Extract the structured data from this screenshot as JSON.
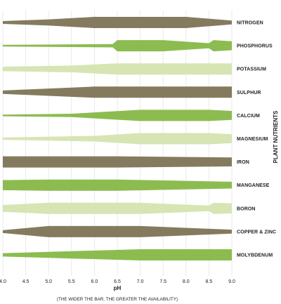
{
  "chart_data": {
    "type": "area",
    "xlabel": "pH",
    "xnote": "(THE WIDER THE BAR, THE GREATER THE AVAILABILITY)",
    "ylabel": "PLANT NUTRIENTS",
    "xlim": [
      4.0,
      9.0
    ],
    "xticks": [
      "4.0",
      "4.5",
      "5.0",
      "5.5",
      "6.0",
      "6.5",
      "7.0",
      "7.5",
      "8.0",
      "8.5",
      "9.0"
    ],
    "colors": {
      "dark": "#847b5f",
      "green": "#8cbc50",
      "light": "#d6e5b3"
    },
    "value_scale": "relative bar width, 0 = unavailable, 1 = widest bar",
    "series": [
      {
        "name": "NITROGEN",
        "color": "dark",
        "points": [
          [
            4.0,
            0.25
          ],
          [
            5.0,
            0.55
          ],
          [
            6.0,
            1.0
          ],
          [
            8.0,
            1.0
          ],
          [
            9.0,
            0.35
          ]
        ]
      },
      {
        "name": "PHOSPHORUS",
        "color": "green",
        "points": [
          [
            4.0,
            0.15
          ],
          [
            6.4,
            0.3
          ],
          [
            6.5,
            1.0
          ],
          [
            7.5,
            1.0
          ],
          [
            8.5,
            0.45
          ],
          [
            8.6,
            1.0
          ],
          [
            9.0,
            0.8
          ]
        ]
      },
      {
        "name": "POTASSIUM",
        "color": "light",
        "points": [
          [
            4.0,
            0.4
          ],
          [
            5.5,
            0.6
          ],
          [
            6.5,
            1.0
          ],
          [
            9.0,
            1.0
          ]
        ]
      },
      {
        "name": "SULPHUR",
        "color": "dark",
        "points": [
          [
            4.0,
            0.3
          ],
          [
            6.0,
            1.0
          ],
          [
            9.0,
            1.0
          ]
        ]
      },
      {
        "name": "CALCIUM",
        "color": "green",
        "points": [
          [
            4.0,
            0.15
          ],
          [
            5.5,
            0.3
          ],
          [
            7.0,
            1.0
          ],
          [
            8.5,
            1.0
          ],
          [
            9.0,
            0.8
          ]
        ]
      },
      {
        "name": "MAGNESIUM",
        "color": "light",
        "points": [
          [
            4.0,
            0.2
          ],
          [
            6.0,
            0.5
          ],
          [
            7.0,
            1.0
          ],
          [
            8.5,
            1.0
          ],
          [
            9.0,
            0.8
          ]
        ]
      },
      {
        "name": "IRON",
        "color": "dark",
        "points": [
          [
            4.0,
            1.0
          ],
          [
            6.5,
            1.0
          ],
          [
            9.0,
            0.8
          ]
        ]
      },
      {
        "name": "MANGANESE",
        "color": "green",
        "points": [
          [
            4.0,
            0.9
          ],
          [
            5.0,
            1.0
          ],
          [
            6.5,
            1.0
          ],
          [
            9.0,
            0.6
          ]
        ]
      },
      {
        "name": "BORON",
        "color": "light",
        "points": [
          [
            4.0,
            0.6
          ],
          [
            5.0,
            1.0
          ],
          [
            7.0,
            1.0
          ],
          [
            8.5,
            0.5
          ],
          [
            8.6,
            1.0
          ],
          [
            9.0,
            0.9
          ]
        ]
      },
      {
        "name": "COPPER & ZINC",
        "color": "dark",
        "points": [
          [
            4.0,
            0.25
          ],
          [
            5.0,
            1.0
          ],
          [
            7.0,
            1.0
          ],
          [
            9.0,
            0.35
          ]
        ]
      },
      {
        "name": "MOLYBDENUM",
        "color": "green",
        "points": [
          [
            4.0,
            0.3
          ],
          [
            7.0,
            1.0
          ],
          [
            9.0,
            1.0
          ]
        ]
      }
    ]
  }
}
